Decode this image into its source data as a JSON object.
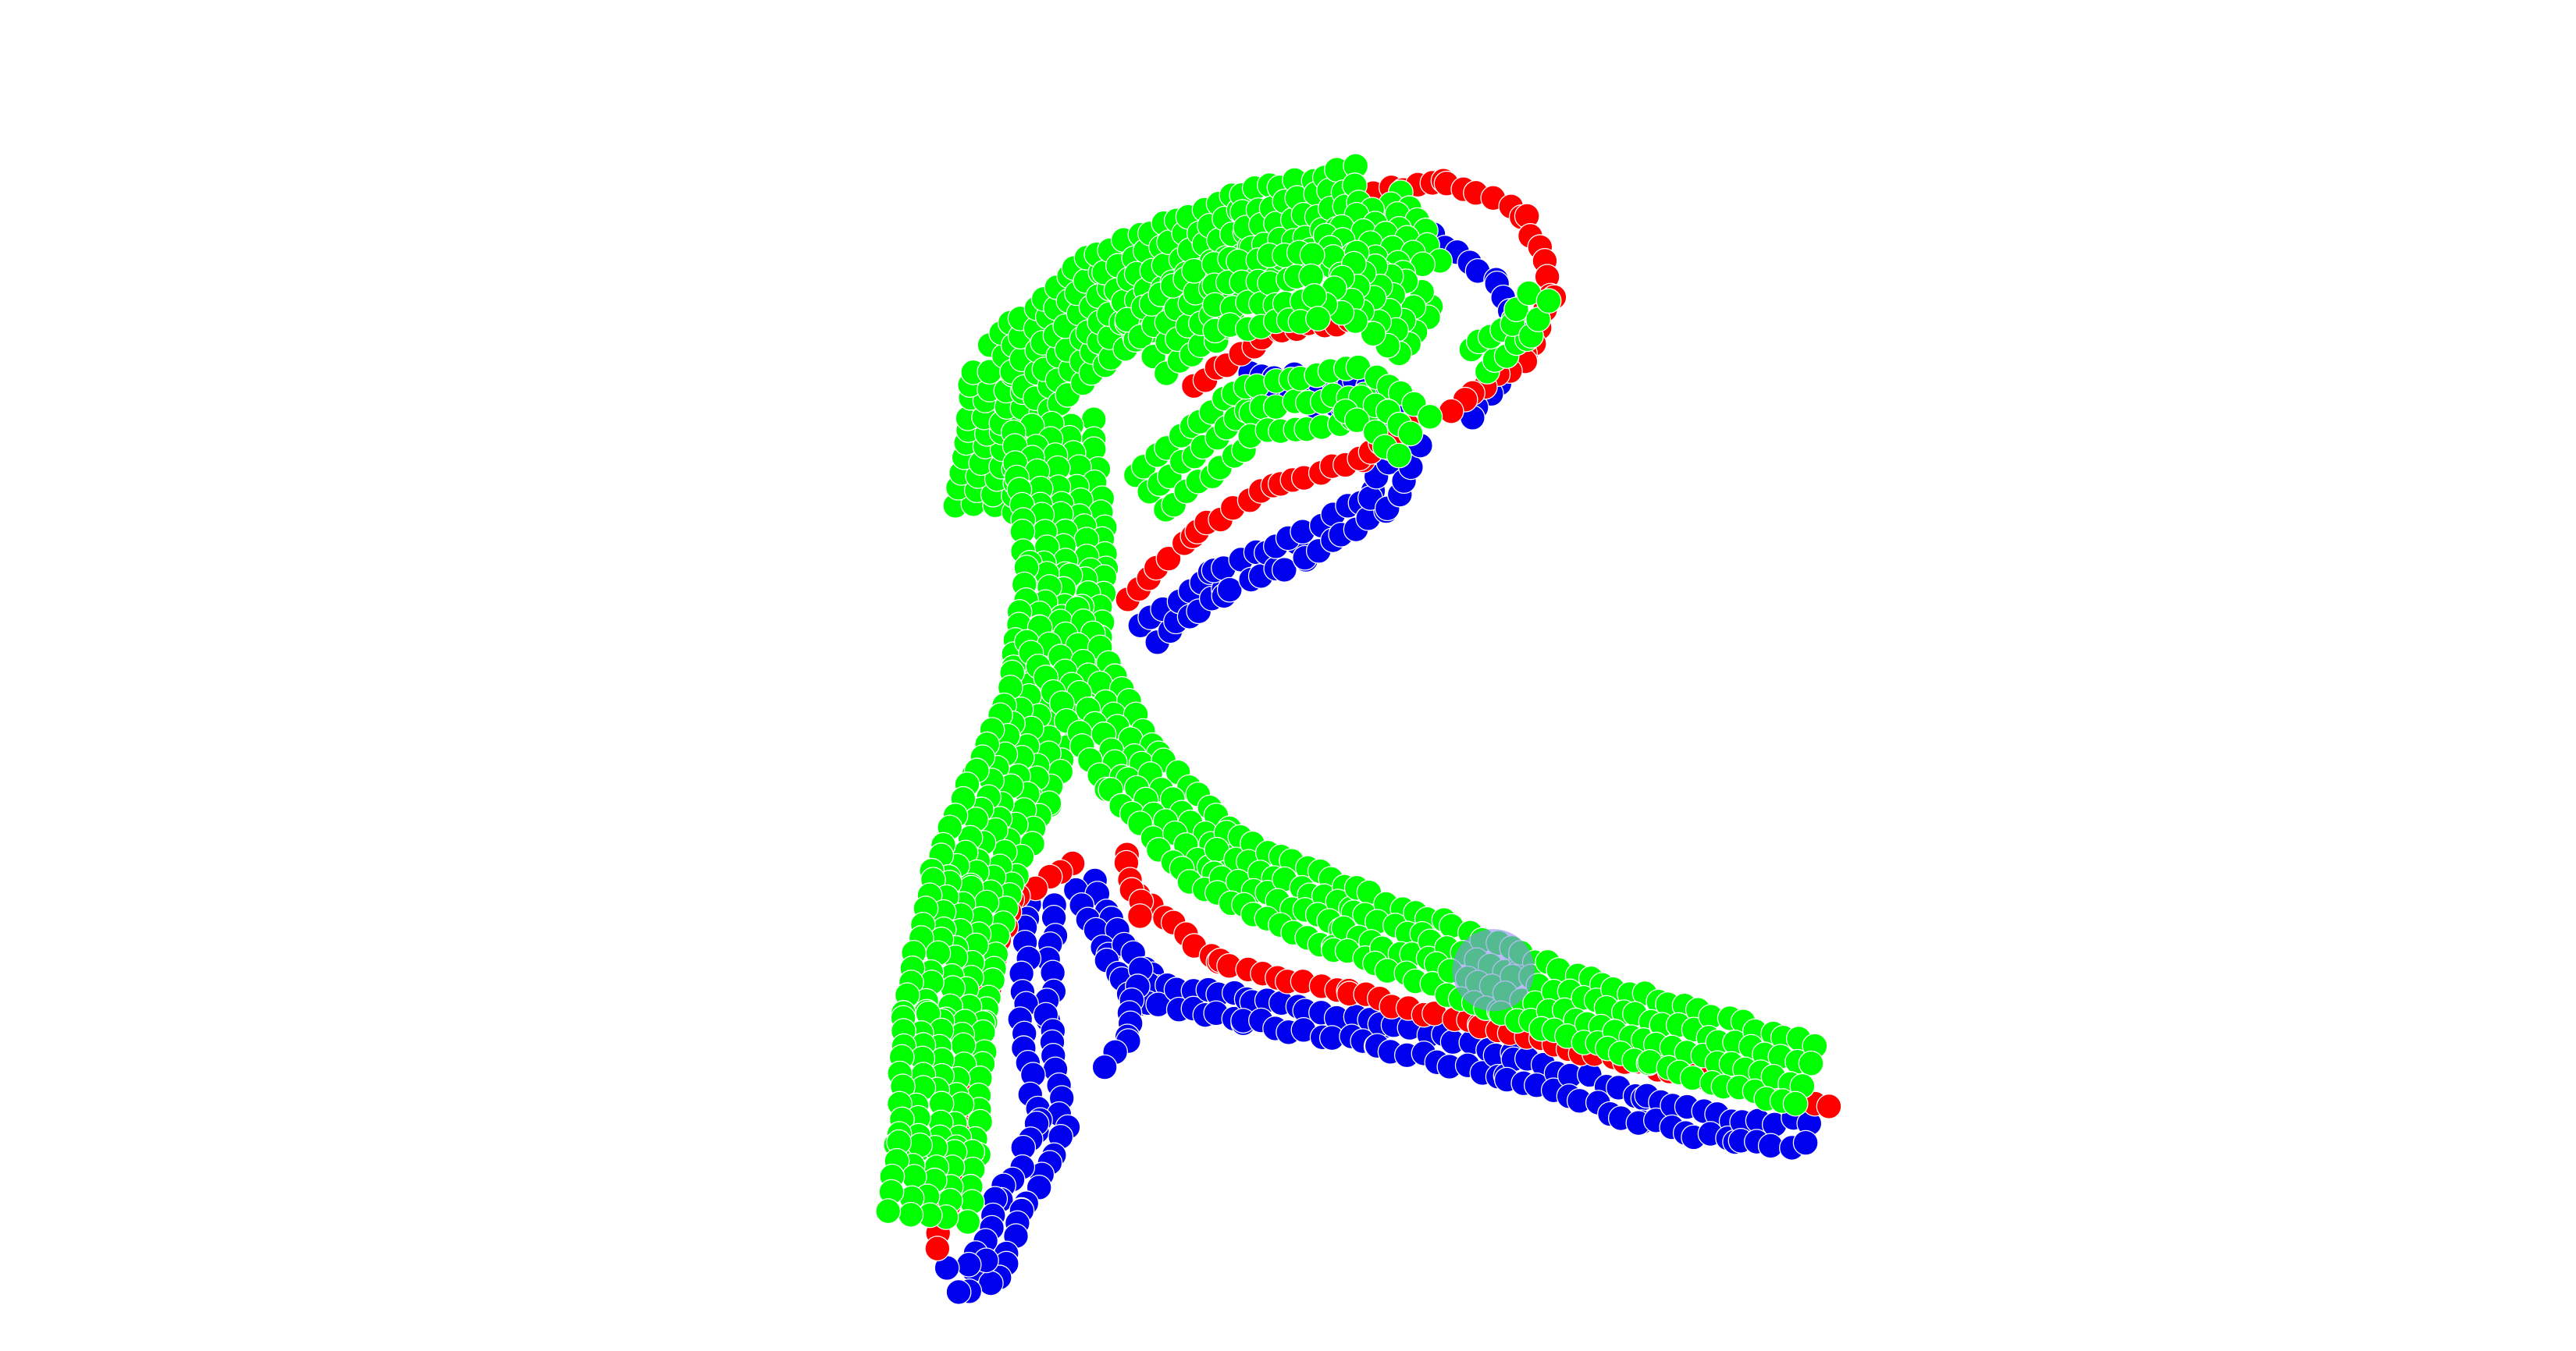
{
  "scene": {
    "type": "point-cloud-render",
    "background": "#ffffff",
    "layers": [
      {
        "name": "back",
        "color": "#0000ee"
      },
      {
        "name": "edge",
        "color": "#ff0000"
      },
      {
        "name": "front",
        "color": "#00ff00"
      }
    ],
    "cursor": {
      "name": "viewer-cursor",
      "color": "#8c8cf0",
      "opacity": 0.6
    }
  }
}
